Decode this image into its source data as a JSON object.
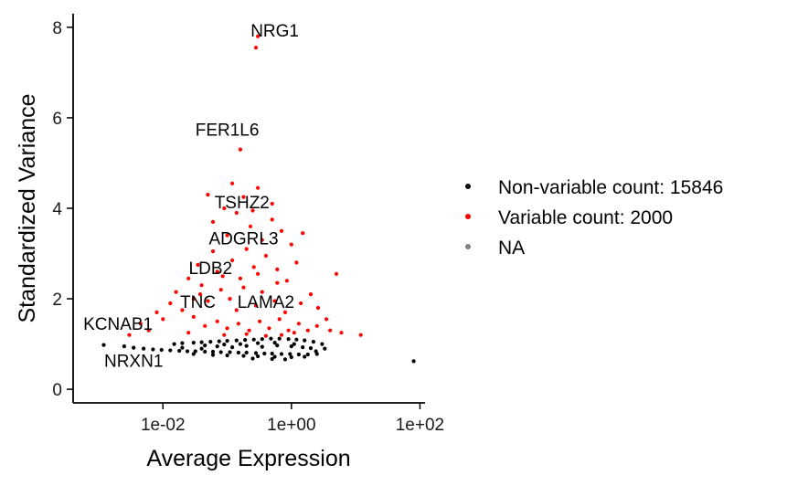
{
  "chart_data": {
    "type": "scatter",
    "xlabel": "Average Expression",
    "ylabel": "Standardized Variance",
    "x_scale": "log10",
    "xlim": [
      0.0004,
      120
    ],
    "ylim": [
      -0.3,
      8.3
    ],
    "x_ticks": [
      {
        "value": 0.01,
        "label": "1e-02"
      },
      {
        "value": 1,
        "label": "1e+00"
      },
      {
        "value": 100,
        "label": "1e+02"
      }
    ],
    "y_ticks": [
      {
        "value": 0,
        "label": "0"
      },
      {
        "value": 2,
        "label": "2"
      },
      {
        "value": 4,
        "label": "4"
      },
      {
        "value": 6,
        "label": "6"
      },
      {
        "value": 8,
        "label": "8"
      }
    ],
    "grid": false,
    "legend": {
      "position": "right",
      "entries": [
        {
          "label": "Non-variable count: 15846",
          "color": "#000000"
        },
        {
          "label": "Variable count: 2000",
          "color": "#ff0000"
        },
        {
          "label": "NA",
          "color": "#808080"
        }
      ]
    },
    "series": [
      {
        "name": "Non-variable count: 15846",
        "color": "#000000",
        "points": [
          [
            0.0012,
            0.98
          ],
          [
            0.0025,
            0.95
          ],
          [
            0.0035,
            0.92
          ],
          [
            0.005,
            0.9
          ],
          [
            0.007,
            0.88
          ],
          [
            0.0095,
            0.87
          ],
          [
            0.013,
            0.86
          ],
          [
            0.018,
            0.85
          ],
          [
            0.024,
            0.84
          ],
          [
            0.032,
            0.84
          ],
          [
            0.045,
            0.83
          ],
          [
            0.06,
            0.83
          ],
          [
            0.08,
            0.82
          ],
          [
            0.11,
            0.82
          ],
          [
            0.15,
            0.81
          ],
          [
            0.2,
            0.81
          ],
          [
            0.28,
            0.8
          ],
          [
            0.38,
            0.79
          ],
          [
            0.5,
            0.79
          ],
          [
            0.7,
            0.78
          ],
          [
            0.95,
            0.78
          ],
          [
            1.3,
            0.77
          ],
          [
            1.8,
            0.77
          ],
          [
            2.5,
            0.78
          ],
          [
            0.015,
            1.0
          ],
          [
            0.02,
            1.02
          ],
          [
            0.03,
            1.03
          ],
          [
            0.04,
            1.04
          ],
          [
            0.055,
            1.05
          ],
          [
            0.075,
            1.06
          ],
          [
            0.1,
            1.07
          ],
          [
            0.14,
            1.08
          ],
          [
            0.19,
            1.09
          ],
          [
            0.26,
            1.1
          ],
          [
            0.35,
            1.11
          ],
          [
            0.48,
            1.12
          ],
          [
            0.65,
            1.12
          ],
          [
            0.9,
            1.11
          ],
          [
            1.2,
            1.1
          ],
          [
            1.6,
            1.08
          ],
          [
            2.2,
            1.05
          ],
          [
            3,
            1.0
          ],
          [
            3.3,
            0.9
          ],
          [
            0.02,
            0.92
          ],
          [
            0.04,
            0.9
          ],
          [
            0.07,
            0.95
          ],
          [
            0.12,
            0.93
          ],
          [
            0.2,
            0.96
          ],
          [
            0.35,
            0.94
          ],
          [
            0.6,
            0.97
          ],
          [
            1.0,
            0.95
          ],
          [
            1.5,
            0.93
          ],
          [
            2.0,
            0.91
          ],
          [
            0.03,
            0.78
          ],
          [
            0.06,
            0.76
          ],
          [
            0.1,
            0.75
          ],
          [
            0.18,
            0.74
          ],
          [
            0.3,
            0.73
          ],
          [
            0.55,
            0.72
          ],
          [
            1.0,
            0.71
          ],
          [
            1.6,
            0.72
          ],
          [
            0.25,
            0.68
          ],
          [
            0.5,
            0.67
          ],
          [
            0.8,
            0.66
          ],
          [
            0.045,
            0.97
          ],
          [
            0.09,
            0.99
          ],
          [
            0.16,
            1.0
          ],
          [
            0.3,
            1.02
          ],
          [
            0.55,
            1.03
          ],
          [
            1.1,
            1.0
          ],
          [
            2.4,
            0.84
          ],
          [
            80,
            0.62
          ]
        ]
      },
      {
        "name": "Variable count: 2000",
        "color": "#ff0000",
        "points": [
          [
            0.003,
            1.2
          ],
          [
            0.0045,
            1.45
          ],
          [
            0.006,
            1.3
          ],
          [
            0.008,
            1.7
          ],
          [
            0.01,
            1.55
          ],
          [
            0.013,
            1.9
          ],
          [
            0.016,
            2.15
          ],
          [
            0.02,
            1.75
          ],
          [
            0.025,
            2.45
          ],
          [
            0.03,
            2.0
          ],
          [
            0.035,
            2.75
          ],
          [
            0.04,
            2.3
          ],
          [
            0.05,
            1.95
          ],
          [
            0.06,
            3.05
          ],
          [
            0.07,
            2.6
          ],
          [
            0.08,
            2.2
          ],
          [
            0.1,
            3.4
          ],
          [
            0.12,
            2.85
          ],
          [
            0.14,
            3.9
          ],
          [
            0.16,
            2.45
          ],
          [
            0.18,
            4.25
          ],
          [
            0.2,
            3.1
          ],
          [
            0.23,
            3.6
          ],
          [
            0.26,
            2.7
          ],
          [
            0.3,
            4.45
          ],
          [
            0.35,
            3.3
          ],
          [
            0.4,
            2.95
          ],
          [
            0.5,
            3.75
          ],
          [
            0.6,
            2.65
          ],
          [
            0.7,
            3.5
          ],
          [
            0.85,
            2.4
          ],
          [
            1.0,
            3.2
          ],
          [
            1.2,
            2.8
          ],
          [
            1.5,
            3.45
          ],
          [
            2.0,
            2.1
          ],
          [
            2.6,
            1.8
          ],
          [
            3.5,
            1.55
          ],
          [
            5,
            2.55
          ],
          [
            4,
            1.3
          ],
          [
            6,
            1.25
          ],
          [
            12,
            1.2
          ],
          [
            0.06,
            3.7
          ],
          [
            0.05,
            4.3
          ],
          [
            0.09,
            4.0
          ],
          [
            0.12,
            4.55
          ],
          [
            0.25,
            3.95
          ],
          [
            0.5,
            4.1
          ],
          [
            0.03,
            1.6
          ],
          [
            0.045,
            1.4
          ],
          [
            0.07,
            1.5
          ],
          [
            0.1,
            1.35
          ],
          [
            0.15,
            1.45
          ],
          [
            0.22,
            1.3
          ],
          [
            0.32,
            1.5
          ],
          [
            0.45,
            1.35
          ],
          [
            0.65,
            1.55
          ],
          [
            0.9,
            1.3
          ],
          [
            1.3,
            1.45
          ],
          [
            1.8,
            1.3
          ],
          [
            0.025,
            1.25
          ],
          [
            0.09,
            1.2
          ],
          [
            0.2,
            1.22
          ],
          [
            0.4,
            1.18
          ],
          [
            0.7,
            1.2
          ],
          [
            1.1,
            1.25
          ],
          [
            2.5,
            1.4
          ],
          [
            0.14,
            1.75
          ],
          [
            0.28,
            1.85
          ],
          [
            0.55,
            1.95
          ],
          [
            0.8,
            1.7
          ],
          [
            1.4,
            1.9
          ],
          [
            0.11,
            2.0
          ],
          [
            0.18,
            2.25
          ],
          [
            0.35,
            2.15
          ],
          [
            0.6,
            2.35
          ],
          [
            0.038,
            2.1
          ],
          [
            0.085,
            2.5
          ],
          [
            0.3,
            2.55
          ],
          [
            0.16,
            5.3
          ],
          [
            0.28,
            7.55
          ],
          [
            0.3,
            7.8
          ]
        ]
      }
    ],
    "annotations": [
      {
        "text": "NRG1",
        "x": 0.55,
        "y": 7.8
      },
      {
        "text": "FER1L6",
        "x": 0.1,
        "y": 5.6
      },
      {
        "text": "TSHZ2",
        "x": 0.17,
        "y": 4.0
      },
      {
        "text": "ADGRL3",
        "x": 0.18,
        "y": 3.2
      },
      {
        "text": "LDB2",
        "x": 0.055,
        "y": 2.55
      },
      {
        "text": "TNC",
        "x": 0.035,
        "y": 1.8
      },
      {
        "text": "LAMA2",
        "x": 0.4,
        "y": 1.8
      },
      {
        "text": "KCNAB1",
        "x": 0.002,
        "y": 1.32
      },
      {
        "text": "NRXN1",
        "x": 0.0035,
        "y": 0.5
      }
    ]
  }
}
